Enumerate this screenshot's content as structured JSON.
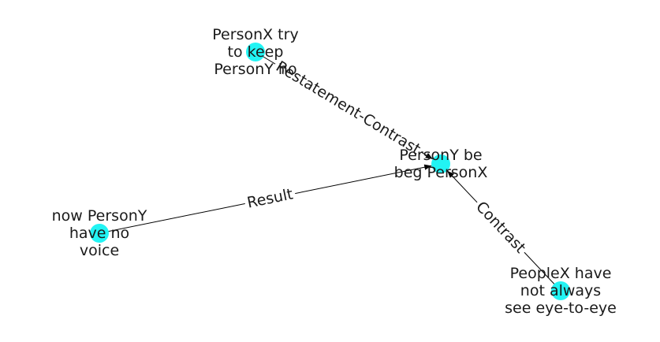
{
  "colors": {
    "node": "#22f4f4",
    "edge": "#000000",
    "text": "#1a1a1a",
    "background": "#ffffff"
  },
  "nodes": [
    {
      "id": "n1",
      "lines": [
        "PersonX try",
        "to keep",
        "PersonY ho"
      ]
    },
    {
      "id": "n2",
      "lines": [
        "PersonY be",
        "beg PersonX"
      ]
    },
    {
      "id": "n3",
      "lines": [
        "now PersonY",
        "have no",
        "voice"
      ]
    },
    {
      "id": "n4",
      "lines": [
        "PeopleX have",
        "not always",
        "see eye-to-eye"
      ]
    }
  ],
  "edges": [
    {
      "from": "n1",
      "to": "n2",
      "label": "Restatement-Contrast"
    },
    {
      "from": "n3",
      "to": "n2",
      "label": "Result"
    },
    {
      "from": "n4",
      "to": "n2",
      "label": "Contrast"
    }
  ]
}
